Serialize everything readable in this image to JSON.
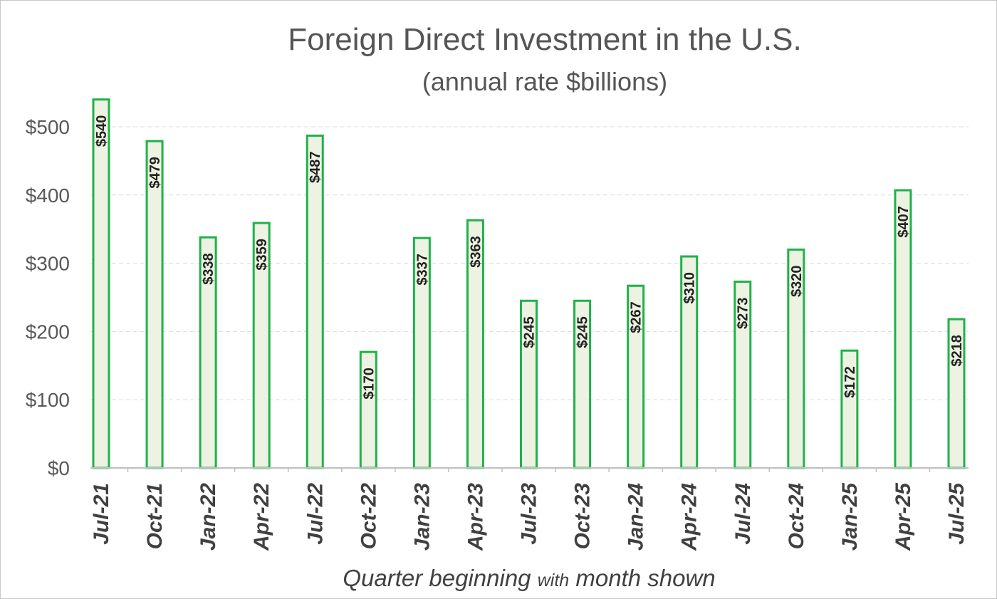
{
  "chart_data": {
    "type": "bar",
    "title": "Foreign Direct Investment in the U.S.",
    "subtitle": "(annual rate $billions)",
    "xlabel_parts": [
      "Quarter beginning ",
      "with",
      " month shown"
    ],
    "ylabel": "",
    "ylim": [
      0,
      550
    ],
    "yticks": [
      0,
      100,
      200,
      300,
      400,
      500
    ],
    "ytick_labels": [
      "$0",
      "$100",
      "$200",
      "$300",
      "$400",
      "$500"
    ],
    "categories": [
      "Jul-21",
      "Oct-21",
      "Jan-22",
      "Apr-22",
      "Jul-22",
      "Oct-22",
      "Jan-23",
      "Apr-23",
      "Jul-23",
      "Oct-23",
      "Jan-24",
      "Apr-24",
      "Jul-24",
      "Oct-24",
      "Jan-25",
      "Apr-25",
      "Jul-25"
    ],
    "values": [
      540,
      479,
      338,
      359,
      487,
      170,
      337,
      363,
      245,
      245,
      267,
      310,
      273,
      320,
      172,
      407,
      218
    ],
    "data_labels": [
      "$540",
      "$479",
      "$338",
      "$359",
      "$487",
      "$170",
      "$337",
      "$363",
      "$245",
      "$245",
      "$267",
      "$310",
      "$273",
      "$320",
      "$172",
      "$407",
      "$218"
    ],
    "grid": true,
    "legend": "none",
    "colors": {
      "bar_fill": "#eef2e2",
      "bar_stroke": "#1fb24a"
    }
  }
}
